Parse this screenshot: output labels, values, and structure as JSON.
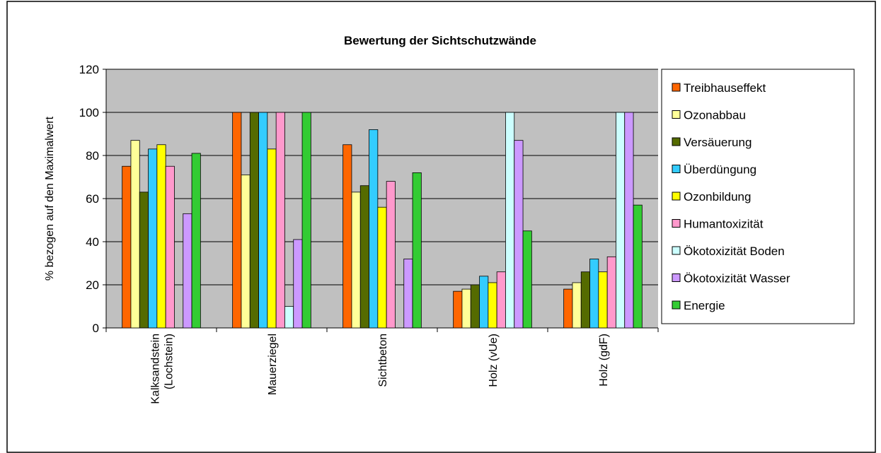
{
  "chart_data": {
    "type": "bar",
    "title": "Bewertung der Sichtschutzwände",
    "y_label": "% bezogen auf den Maximalwert",
    "categories": [
      "Kalksandstein\n(Lochstein)",
      "Mauerziegel",
      "Sichtbeton",
      "Holz (vUe)",
      "Holz (gdF)"
    ],
    "series": [
      {
        "name": "Treibhauseffekt",
        "color": "#ff6600",
        "values": [
          75,
          100,
          85,
          17,
          18
        ]
      },
      {
        "name": "Ozonabbau",
        "color": "#ffff99",
        "values": [
          87,
          71,
          63,
          18,
          21
        ]
      },
      {
        "name": "Versäuerung",
        "color": "#556b00",
        "values": [
          63,
          100,
          66,
          20,
          26
        ]
      },
      {
        "name": "Überdüngung",
        "color": "#33ccff",
        "values": [
          83,
          100,
          92,
          24,
          32
        ]
      },
      {
        "name": "Ozonbildung",
        "color": "#ffff00",
        "values": [
          85,
          83,
          56,
          21,
          26
        ]
      },
      {
        "name": "Humantoxizität",
        "color": "#ff99cc",
        "values": [
          75,
          100,
          68,
          26,
          33
        ]
      },
      {
        "name": "Ökotoxizität Boden",
        "color": "#ccffff",
        "values": [
          0,
          10,
          0,
          100,
          100
        ]
      },
      {
        "name": "Ökotoxizität Wasser",
        "color": "#cc99ff",
        "values": [
          53,
          41,
          32,
          87,
          100
        ]
      },
      {
        "name": "Energie",
        "color": "#33cc33",
        "values": [
          81,
          100,
          72,
          45,
          57
        ]
      }
    ],
    "ylim": [
      0,
      120
    ],
    "yticks": [
      0,
      20,
      40,
      60,
      80,
      100,
      120
    ],
    "grid": true,
    "legend": "right"
  }
}
